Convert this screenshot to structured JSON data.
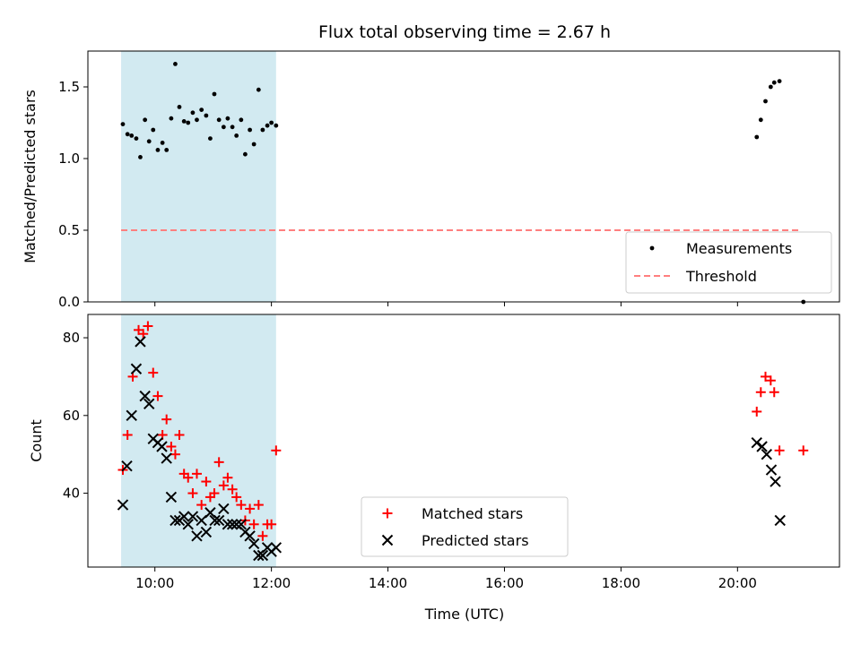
{
  "chart_data": [
    {
      "type": "scatter",
      "title": "Flux total observing time = 2.67 h",
      "ylabel": "Matched/Predicted stars",
      "xlim_hours": [
        8.85,
        21.75
      ],
      "ylim": [
        0,
        1.75
      ],
      "yticks": [
        0.0,
        0.5,
        1.0,
        1.5
      ],
      "ytick_labels": [
        "0.0",
        "0.5",
        "1.0",
        "1.5"
      ],
      "shaded_span_hours": [
        9.42,
        12.08
      ],
      "shaded_color": "#add8e6",
      "legend_position": "lower right",
      "legend": [
        "Measurements",
        "Threshold"
      ],
      "threshold": {
        "name": "Threshold",
        "y": 0.5,
        "x_hours": [
          9.42,
          21.1
        ],
        "color": "#ff7f7f",
        "style": "dashed"
      },
      "series": [
        {
          "name": "Measurements",
          "marker": "dot",
          "color": "#000000",
          "x_hours": [
            9.45,
            9.53,
            9.6,
            9.68,
            9.75,
            9.83,
            9.9,
            9.97,
            10.05,
            10.13,
            10.2,
            10.28,
            10.35,
            10.42,
            10.5,
            10.57,
            10.65,
            10.72,
            10.8,
            10.88,
            10.95,
            11.02,
            11.1,
            11.18,
            11.25,
            11.33,
            11.4,
            11.48,
            11.55,
            11.63,
            11.7,
            11.78,
            11.85,
            11.93,
            12.0,
            12.08,
            20.33,
            20.4,
            20.48,
            20.57,
            20.63,
            20.72,
            21.13
          ],
          "y": [
            1.24,
            1.17,
            1.16,
            1.14,
            1.01,
            1.27,
            1.12,
            1.2,
            1.06,
            1.11,
            1.06,
            1.28,
            1.66,
            1.36,
            1.26,
            1.25,
            1.32,
            1.27,
            1.34,
            1.3,
            1.14,
            1.45,
            1.27,
            1.22,
            1.28,
            1.22,
            1.16,
            1.27,
            1.03,
            1.2,
            1.1,
            1.48,
            1.2,
            1.23,
            1.25,
            1.23,
            1.15,
            1.27,
            1.4,
            1.5,
            1.53,
            1.54,
            0.0
          ]
        }
      ]
    },
    {
      "type": "scatter",
      "xlabel": "Time (UTC)",
      "ylabel": "Count",
      "xlim_hours": [
        8.85,
        21.75
      ],
      "ylim": [
        21,
        86
      ],
      "yticks": [
        40,
        60,
        80
      ],
      "xticks_hours": [
        10,
        12,
        14,
        16,
        18,
        20
      ],
      "xtick_labels": [
        "10:00",
        "12:00",
        "14:00",
        "16:00",
        "18:00",
        "20:00"
      ],
      "shaded_span_hours": [
        9.42,
        12.08
      ],
      "shaded_color": "#add8e6",
      "legend_position": "lower center",
      "legend": [
        "Matched stars",
        "Predicted stars"
      ],
      "series": [
        {
          "name": "Matched stars",
          "marker": "plus",
          "color": "#ff0000",
          "x_hours": [
            9.45,
            9.53,
            9.62,
            9.72,
            9.8,
            9.88,
            9.97,
            10.05,
            10.13,
            10.2,
            10.28,
            10.35,
            10.42,
            10.5,
            10.57,
            10.65,
            10.72,
            10.8,
            10.88,
            10.95,
            11.02,
            11.1,
            11.18,
            11.25,
            11.33,
            11.4,
            11.48,
            11.55,
            11.63,
            11.7,
            11.78,
            11.85,
            11.93,
            12.0,
            12.08,
            20.33,
            20.4,
            20.48,
            20.57,
            20.63,
            20.72,
            21.13
          ],
          "y": [
            46,
            55,
            70,
            82,
            81,
            83,
            71,
            65,
            55,
            59,
            52,
            50,
            55,
            45,
            44,
            40,
            45,
            37,
            43,
            39,
            40,
            48,
            42,
            44,
            41,
            39,
            37,
            33,
            36,
            32,
            37,
            29,
            32,
            32,
            51,
            61,
            66,
            70,
            69,
            66,
            51,
            51
          ]
        },
        {
          "name": "Predicted stars",
          "marker": "x",
          "color": "#000000",
          "x_hours": [
            9.45,
            9.52,
            9.6,
            9.68,
            9.75,
            9.83,
            9.9,
            9.97,
            10.05,
            10.12,
            10.2,
            10.28,
            10.35,
            10.42,
            10.5,
            10.57,
            10.65,
            10.72,
            10.8,
            10.88,
            10.95,
            11.03,
            11.1,
            11.18,
            11.25,
            11.33,
            11.4,
            11.48,
            11.55,
            11.63,
            11.7,
            11.78,
            11.85,
            11.93,
            12.0,
            12.08,
            20.33,
            20.42,
            20.5,
            20.58,
            20.65,
            20.73
          ],
          "y": [
            37,
            47,
            60,
            72,
            79,
            65,
            63,
            54,
            53,
            52,
            49,
            39,
            33,
            33,
            34,
            32,
            34,
            29,
            33,
            30,
            35,
            33,
            33,
            36,
            32,
            32,
            32,
            32,
            30,
            29,
            27,
            24,
            24,
            26,
            25,
            26,
            53,
            52,
            50,
            46,
            43,
            33
          ]
        }
      ]
    }
  ]
}
